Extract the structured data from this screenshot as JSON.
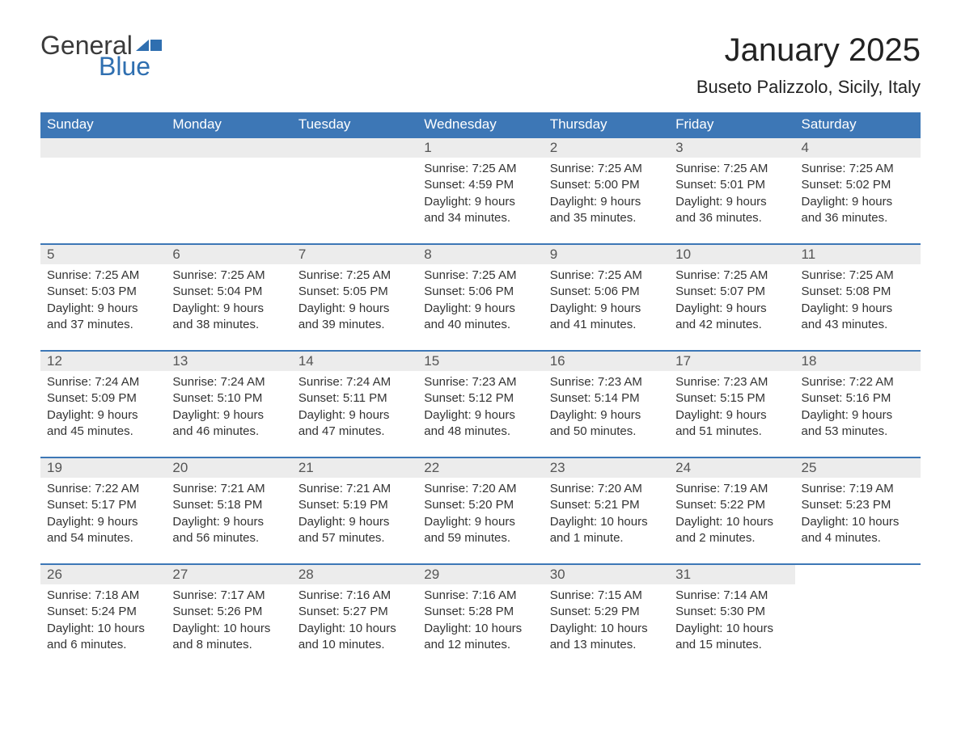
{
  "brand": {
    "general": "General",
    "blue": "Blue"
  },
  "colors": {
    "header_bg": "#3d77b6",
    "header_text": "#ffffff",
    "daynum_bg": "#ececec",
    "body_text": "#333333",
    "brand_blue": "#2f6fb0",
    "page_bg": "#ffffff",
    "row_border": "#3d77b6"
  },
  "typography": {
    "title_fontsize": 40,
    "location_fontsize": 22,
    "header_fontsize": 17,
    "daynum_fontsize": 17,
    "body_fontsize": 15
  },
  "title": "January 2025",
  "location": "Buseto Palizzolo, Sicily, Italy",
  "weekday_headers": [
    "Sunday",
    "Monday",
    "Tuesday",
    "Wednesday",
    "Thursday",
    "Friday",
    "Saturday"
  ],
  "calendar": {
    "type": "table",
    "leading_blanks": 3,
    "trailing_blanks": 1,
    "days": [
      {
        "n": "1",
        "sunrise": "Sunrise: 7:25 AM",
        "sunset": "Sunset: 4:59 PM",
        "daylight": "Daylight: 9 hours and 34 minutes."
      },
      {
        "n": "2",
        "sunrise": "Sunrise: 7:25 AM",
        "sunset": "Sunset: 5:00 PM",
        "daylight": "Daylight: 9 hours and 35 minutes."
      },
      {
        "n": "3",
        "sunrise": "Sunrise: 7:25 AM",
        "sunset": "Sunset: 5:01 PM",
        "daylight": "Daylight: 9 hours and 36 minutes."
      },
      {
        "n": "4",
        "sunrise": "Sunrise: 7:25 AM",
        "sunset": "Sunset: 5:02 PM",
        "daylight": "Daylight: 9 hours and 36 minutes."
      },
      {
        "n": "5",
        "sunrise": "Sunrise: 7:25 AM",
        "sunset": "Sunset: 5:03 PM",
        "daylight": "Daylight: 9 hours and 37 minutes."
      },
      {
        "n": "6",
        "sunrise": "Sunrise: 7:25 AM",
        "sunset": "Sunset: 5:04 PM",
        "daylight": "Daylight: 9 hours and 38 minutes."
      },
      {
        "n": "7",
        "sunrise": "Sunrise: 7:25 AM",
        "sunset": "Sunset: 5:05 PM",
        "daylight": "Daylight: 9 hours and 39 minutes."
      },
      {
        "n": "8",
        "sunrise": "Sunrise: 7:25 AM",
        "sunset": "Sunset: 5:06 PM",
        "daylight": "Daylight: 9 hours and 40 minutes."
      },
      {
        "n": "9",
        "sunrise": "Sunrise: 7:25 AM",
        "sunset": "Sunset: 5:06 PM",
        "daylight": "Daylight: 9 hours and 41 minutes."
      },
      {
        "n": "10",
        "sunrise": "Sunrise: 7:25 AM",
        "sunset": "Sunset: 5:07 PM",
        "daylight": "Daylight: 9 hours and 42 minutes."
      },
      {
        "n": "11",
        "sunrise": "Sunrise: 7:25 AM",
        "sunset": "Sunset: 5:08 PM",
        "daylight": "Daylight: 9 hours and 43 minutes."
      },
      {
        "n": "12",
        "sunrise": "Sunrise: 7:24 AM",
        "sunset": "Sunset: 5:09 PM",
        "daylight": "Daylight: 9 hours and 45 minutes."
      },
      {
        "n": "13",
        "sunrise": "Sunrise: 7:24 AM",
        "sunset": "Sunset: 5:10 PM",
        "daylight": "Daylight: 9 hours and 46 minutes."
      },
      {
        "n": "14",
        "sunrise": "Sunrise: 7:24 AM",
        "sunset": "Sunset: 5:11 PM",
        "daylight": "Daylight: 9 hours and 47 minutes."
      },
      {
        "n": "15",
        "sunrise": "Sunrise: 7:23 AM",
        "sunset": "Sunset: 5:12 PM",
        "daylight": "Daylight: 9 hours and 48 minutes."
      },
      {
        "n": "16",
        "sunrise": "Sunrise: 7:23 AM",
        "sunset": "Sunset: 5:14 PM",
        "daylight": "Daylight: 9 hours and 50 minutes."
      },
      {
        "n": "17",
        "sunrise": "Sunrise: 7:23 AM",
        "sunset": "Sunset: 5:15 PM",
        "daylight": "Daylight: 9 hours and 51 minutes."
      },
      {
        "n": "18",
        "sunrise": "Sunrise: 7:22 AM",
        "sunset": "Sunset: 5:16 PM",
        "daylight": "Daylight: 9 hours and 53 minutes."
      },
      {
        "n": "19",
        "sunrise": "Sunrise: 7:22 AM",
        "sunset": "Sunset: 5:17 PM",
        "daylight": "Daylight: 9 hours and 54 minutes."
      },
      {
        "n": "20",
        "sunrise": "Sunrise: 7:21 AM",
        "sunset": "Sunset: 5:18 PM",
        "daylight": "Daylight: 9 hours and 56 minutes."
      },
      {
        "n": "21",
        "sunrise": "Sunrise: 7:21 AM",
        "sunset": "Sunset: 5:19 PM",
        "daylight": "Daylight: 9 hours and 57 minutes."
      },
      {
        "n": "22",
        "sunrise": "Sunrise: 7:20 AM",
        "sunset": "Sunset: 5:20 PM",
        "daylight": "Daylight: 9 hours and 59 minutes."
      },
      {
        "n": "23",
        "sunrise": "Sunrise: 7:20 AM",
        "sunset": "Sunset: 5:21 PM",
        "daylight": "Daylight: 10 hours and 1 minute."
      },
      {
        "n": "24",
        "sunrise": "Sunrise: 7:19 AM",
        "sunset": "Sunset: 5:22 PM",
        "daylight": "Daylight: 10 hours and 2 minutes."
      },
      {
        "n": "25",
        "sunrise": "Sunrise: 7:19 AM",
        "sunset": "Sunset: 5:23 PM",
        "daylight": "Daylight: 10 hours and 4 minutes."
      },
      {
        "n": "26",
        "sunrise": "Sunrise: 7:18 AM",
        "sunset": "Sunset: 5:24 PM",
        "daylight": "Daylight: 10 hours and 6 minutes."
      },
      {
        "n": "27",
        "sunrise": "Sunrise: 7:17 AM",
        "sunset": "Sunset: 5:26 PM",
        "daylight": "Daylight: 10 hours and 8 minutes."
      },
      {
        "n": "28",
        "sunrise": "Sunrise: 7:16 AM",
        "sunset": "Sunset: 5:27 PM",
        "daylight": "Daylight: 10 hours and 10 minutes."
      },
      {
        "n": "29",
        "sunrise": "Sunrise: 7:16 AM",
        "sunset": "Sunset: 5:28 PM",
        "daylight": "Daylight: 10 hours and 12 minutes."
      },
      {
        "n": "30",
        "sunrise": "Sunrise: 7:15 AM",
        "sunset": "Sunset: 5:29 PM",
        "daylight": "Daylight: 10 hours and 13 minutes."
      },
      {
        "n": "31",
        "sunrise": "Sunrise: 7:14 AM",
        "sunset": "Sunset: 5:30 PM",
        "daylight": "Daylight: 10 hours and 15 minutes."
      }
    ]
  }
}
